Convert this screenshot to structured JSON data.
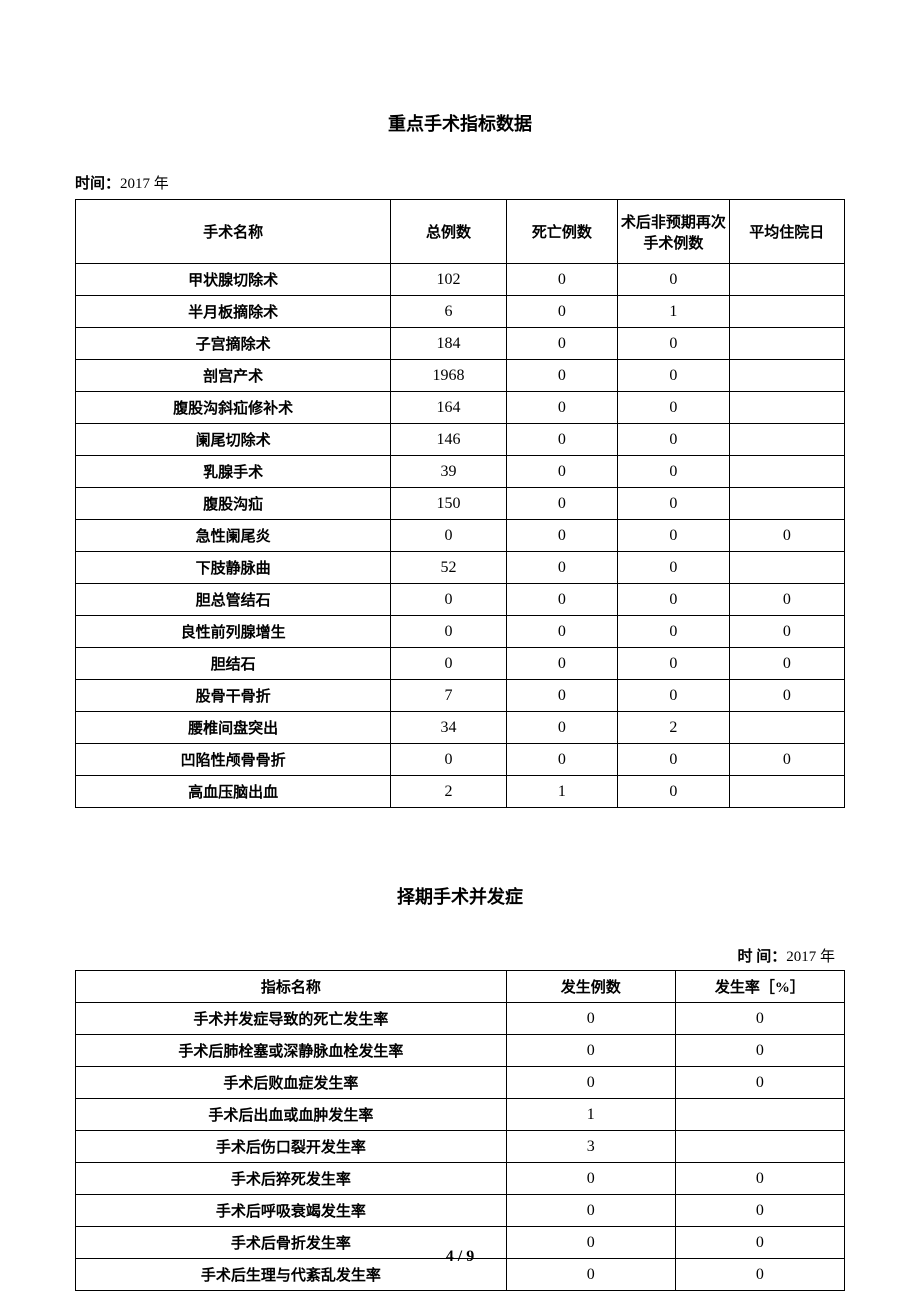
{
  "page": {
    "title1": "重点手术指标数据",
    "time1_label": "时间：",
    "time1_value": "2017 年",
    "title2": "择期手术并发症",
    "time2_label": "时 间：",
    "time2_value": "2017 年",
    "pagenum": "4 / 9"
  },
  "table1": {
    "headers": [
      "手术名称",
      "总例数",
      "死亡例数",
      "术后非预期再次手术例数",
      "平均住院日"
    ],
    "rows": [
      [
        "甲状腺切除术",
        "102",
        "0",
        "0",
        ""
      ],
      [
        "半月板摘除术",
        "6",
        "0",
        "1",
        ""
      ],
      [
        "子宫摘除术",
        "184",
        "0",
        "0",
        ""
      ],
      [
        "剖宫产术",
        "1968",
        "0",
        "0",
        ""
      ],
      [
        "腹股沟斜疝修补术",
        "164",
        "0",
        "0",
        ""
      ],
      [
        "阑尾切除术",
        "146",
        "0",
        "0",
        ""
      ],
      [
        "乳腺手术",
        "39",
        "0",
        "0",
        ""
      ],
      [
        "腹股沟疝",
        "150",
        "0",
        "0",
        ""
      ],
      [
        "急性阑尾炎",
        "0",
        "0",
        "0",
        "0"
      ],
      [
        "下肢静脉曲",
        "52",
        "0",
        "0",
        ""
      ],
      [
        "胆总管结石",
        "0",
        "0",
        "0",
        "0"
      ],
      [
        "良性前列腺增生",
        "0",
        "0",
        "0",
        "0"
      ],
      [
        "胆结石",
        "0",
        "0",
        "0",
        "0"
      ],
      [
        "股骨干骨折",
        "7",
        "0",
        "0",
        "0"
      ],
      [
        "腰椎间盘突出",
        "34",
        "0",
        "2",
        ""
      ],
      [
        "凹陷性颅骨骨折",
        "0",
        "0",
        "0",
        "0"
      ],
      [
        "高血压脑出血",
        "2",
        "1",
        "0",
        ""
      ]
    ]
  },
  "table2": {
    "headers": [
      "指标名称",
      "发生例数",
      "发生率［%］"
    ],
    "rows": [
      [
        "手术并发症导致的死亡发生率",
        "0",
        "0"
      ],
      [
        "手术后肺栓塞或深静脉血栓发生率",
        "0",
        "0"
      ],
      [
        "手术后败血症发生率",
        "0",
        "0"
      ],
      [
        "手术后出血或血肿发生率",
        "1",
        ""
      ],
      [
        "手术后伤口裂开发生率",
        "3",
        ""
      ],
      [
        "手术后猝死发生率",
        "0",
        "0"
      ],
      [
        "手术后呼吸衰竭发生率",
        "0",
        "0"
      ],
      [
        "手术后骨折发生率",
        "0",
        "0"
      ],
      [
        "手术后生理与代紊乱发生率",
        "0",
        "0"
      ]
    ]
  }
}
